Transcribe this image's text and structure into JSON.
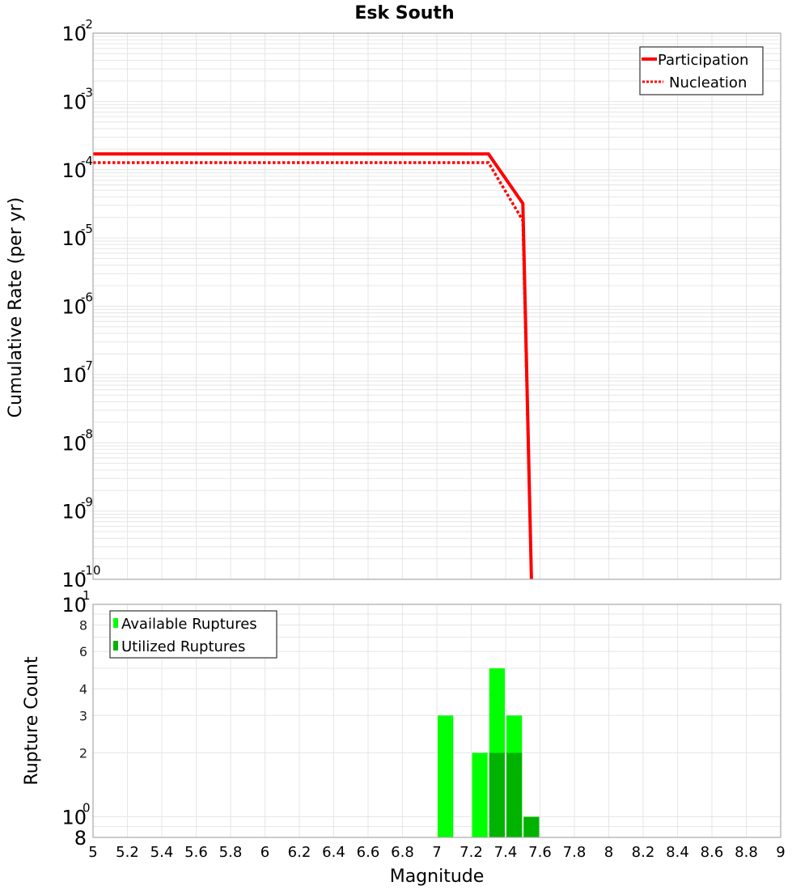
{
  "chart_data": [
    {
      "type": "line",
      "title": "Esk South",
      "xlabel": "Magnitude",
      "ylabel": "Cumulative Rate (per yr)",
      "xlim": [
        5,
        9
      ],
      "ylim": [
        1e-10,
        0.01
      ],
      "yscale": "log",
      "grid": true,
      "legend_position": "top-right",
      "x_ticks": [
        "5",
        "5.2",
        "5.4",
        "5.6",
        "5.8",
        "6",
        "6.2",
        "6.4",
        "6.6",
        "6.8",
        "7",
        "7.2",
        "7.4",
        "7.6",
        "7.8",
        "8",
        "8.2",
        "8.4",
        "8.6",
        "8.8",
        "9"
      ],
      "y_ticks": [
        {
          "base": "10",
          "exp": "-2"
        },
        {
          "base": "10",
          "exp": "-3"
        },
        {
          "base": "10",
          "exp": "-4"
        },
        {
          "base": "10",
          "exp": "-5"
        },
        {
          "base": "10",
          "exp": "-6"
        },
        {
          "base": "10",
          "exp": "-7"
        },
        {
          "base": "10",
          "exp": "-8"
        },
        {
          "base": "10",
          "exp": "-9"
        },
        {
          "base": "10",
          "exp": "-10"
        }
      ],
      "series": [
        {
          "name": "Participation",
          "style": "solid",
          "color": "#ff0000",
          "x": [
            5.0,
            7.3,
            7.5,
            7.55
          ],
          "values": [
            0.00017,
            0.00017,
            3.2e-05,
            1e-10
          ]
        },
        {
          "name": "Nucleation",
          "style": "dotted",
          "color": "#ff0000",
          "x": [
            5.0,
            7.3,
            7.5,
            7.55
          ],
          "values": [
            0.000127,
            0.000127,
            1.8e-05,
            1e-10
          ]
        }
      ]
    },
    {
      "type": "bar",
      "xlabel": "Magnitude",
      "ylabel": "Rupture Count",
      "xlim": [
        5,
        9
      ],
      "ylim": [
        0.8,
        10
      ],
      "yscale": "log",
      "grid": true,
      "legend_position": "top-left",
      "y_ticks": [
        {
          "label": "8",
          "value": 0.8
        },
        {
          "label": "10",
          "exp": "0",
          "value": 1
        },
        {
          "label": "2",
          "value": 2
        },
        {
          "label": "3",
          "value": 3
        },
        {
          "label": "4",
          "value": 4
        },
        {
          "label": "6",
          "value": 6
        },
        {
          "label": "8",
          "value": 8
        },
        {
          "label": "10",
          "exp": "1",
          "value": 10
        }
      ],
      "categories": [
        7.05,
        7.25,
        7.35,
        7.45,
        7.55
      ],
      "bin_width": 0.1,
      "series": [
        {
          "name": "Available Ruptures",
          "color": "#00ff00",
          "values": [
            3,
            2,
            5,
            3,
            1
          ]
        },
        {
          "name": "Utilized Ruptures",
          "color": "#00b300",
          "values": [
            0,
            0,
            2,
            2,
            1
          ]
        }
      ]
    }
  ],
  "labels": {
    "title": "Esk South",
    "top_ylabel": "Cumulative Rate (per yr)",
    "bottom_ylabel": "Rupture Count",
    "xlabel": "Magnitude",
    "legend_participation": "Participation",
    "legend_nucleation": "Nucleation",
    "legend_available": "Available Ruptures",
    "legend_utilized": "Utilized Ruptures"
  }
}
